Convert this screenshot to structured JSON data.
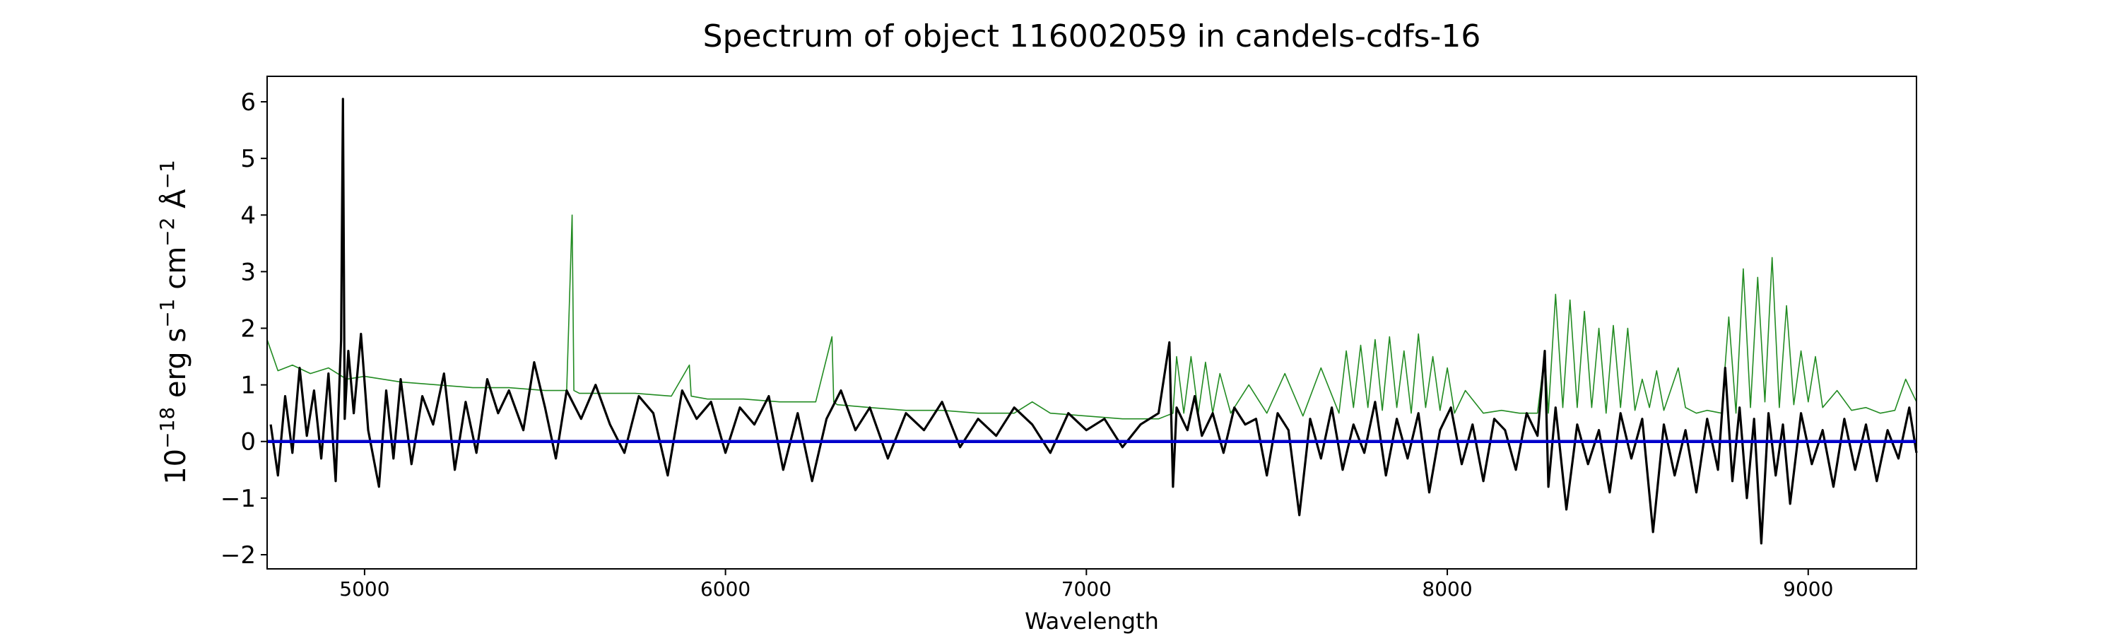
{
  "chart_data": {
    "type": "line",
    "title": "Spectrum of object 116002059 in candels-cdfs-16",
    "xlabel": "Wavelength",
    "ylabel_base": "10",
    "ylabel_exp": "−18",
    "ylabel_u1": " erg s",
    "ylabel_u1_exp": "−1",
    "ylabel_u2": " cm",
    "ylabel_u2_exp": "−2",
    "ylabel_u3": " Å",
    "ylabel_u3_exp": "−1",
    "xlim": [
      4730,
      9300
    ],
    "ylim": [
      -2.25,
      6.45
    ],
    "x_ticks": [
      5000,
      6000,
      7000,
      8000,
      9000
    ],
    "x_tick_labels": [
      "5000",
      "6000",
      "7000",
      "8000",
      "9000"
    ],
    "y_ticks": [
      -2,
      -1,
      0,
      1,
      2,
      3,
      4,
      5,
      6
    ],
    "y_tick_labels": [
      "−2",
      "−1",
      "0",
      "1",
      "2",
      "3",
      "4",
      "5",
      "6"
    ],
    "grid": false,
    "series": [
      {
        "role": "flux",
        "color": "#000000",
        "x": [
          4740,
          4760,
          4780,
          4800,
          4820,
          4840,
          4860,
          4880,
          4900,
          4920,
          4935,
          4940,
          4945,
          4955,
          4970,
          4990,
          5010,
          5040,
          5060,
          5080,
          5100,
          5130,
          5160,
          5190,
          5220,
          5250,
          5280,
          5310,
          5340,
          5370,
          5400,
          5440,
          5470,
          5500,
          5530,
          5560,
          5600,
          5640,
          5680,
          5720,
          5760,
          5800,
          5840,
          5880,
          5920,
          5960,
          6000,
          6040,
          6080,
          6120,
          6160,
          6200,
          6240,
          6280,
          6320,
          6360,
          6400,
          6450,
          6500,
          6550,
          6600,
          6650,
          6700,
          6750,
          6800,
          6850,
          6900,
          6950,
          7000,
          7050,
          7100,
          7150,
          7200,
          7230,
          7240,
          7250,
          7280,
          7300,
          7320,
          7350,
          7380,
          7410,
          7440,
          7470,
          7500,
          7530,
          7560,
          7590,
          7620,
          7650,
          7680,
          7710,
          7740,
          7770,
          7800,
          7830,
          7860,
          7890,
          7920,
          7950,
          7980,
          8010,
          8040,
          8070,
          8100,
          8130,
          8160,
          8190,
          8220,
          8250,
          8270,
          8280,
          8300,
          8330,
          8360,
          8390,
          8420,
          8450,
          8480,
          8510,
          8540,
          8570,
          8600,
          8630,
          8660,
          8690,
          8720,
          8750,
          8770,
          8790,
          8810,
          8830,
          8850,
          8870,
          8890,
          8910,
          8930,
          8950,
          8980,
          9010,
          9040,
          9070,
          9100,
          9130,
          9160,
          9190,
          9220,
          9250,
          9280,
          9300
        ],
        "y": [
          0.3,
          -0.6,
          0.8,
          -0.2,
          1.3,
          0.1,
          0.9,
          -0.3,
          1.2,
          -0.7,
          1.8,
          6.05,
          0.4,
          1.6,
          0.5,
          1.9,
          0.2,
          -0.8,
          0.9,
          -0.3,
          1.1,
          -0.4,
          0.8,
          0.3,
          1.2,
          -0.5,
          0.7,
          -0.2,
          1.1,
          0.5,
          0.9,
          0.2,
          1.4,
          0.6,
          -0.3,
          0.9,
          0.4,
          1.0,
          0.3,
          -0.2,
          0.8,
          0.5,
          -0.6,
          0.9,
          0.4,
          0.7,
          -0.2,
          0.6,
          0.3,
          0.8,
          -0.5,
          0.5,
          -0.7,
          0.4,
          0.9,
          0.2,
          0.6,
          -0.3,
          0.5,
          0.2,
          0.7,
          -0.1,
          0.4,
          0.1,
          0.6,
          0.3,
          -0.2,
          0.5,
          0.2,
          0.4,
          -0.1,
          0.3,
          0.5,
          1.75,
          -0.8,
          0.6,
          0.2,
          0.8,
          0.1,
          0.5,
          -0.2,
          0.6,
          0.3,
          0.4,
          -0.6,
          0.5,
          0.2,
          -1.3,
          0.4,
          -0.3,
          0.6,
          -0.5,
          0.3,
          -0.2,
          0.7,
          -0.6,
          0.4,
          -0.3,
          0.5,
          -0.9,
          0.2,
          0.6,
          -0.4,
          0.3,
          -0.7,
          0.4,
          0.2,
          -0.5,
          0.5,
          0.1,
          1.6,
          -0.8,
          0.6,
          -1.2,
          0.3,
          -0.4,
          0.2,
          -0.9,
          0.5,
          -0.3,
          0.4,
          -1.6,
          0.3,
          -0.6,
          0.2,
          -0.9,
          0.4,
          -0.5,
          1.3,
          -0.7,
          0.6,
          -1.0,
          0.4,
          -1.8,
          0.5,
          -0.6,
          0.3,
          -1.1,
          0.5,
          -0.4,
          0.2,
          -0.8,
          0.4,
          -0.5,
          0.3,
          -0.7,
          0.2,
          -0.3,
          0.6,
          -0.2
        ]
      },
      {
        "role": "model",
        "color": "#228b22",
        "x": [
          4730,
          4760,
          4800,
          4850,
          4900,
          4950,
          5000,
          5100,
          5200,
          5300,
          5400,
          5500,
          5560,
          5575,
          5580,
          5595,
          5650,
          5750,
          5850,
          5900,
          5905,
          5950,
          6050,
          6150,
          6250,
          6295,
          6300,
          6310,
          6400,
          6500,
          6600,
          6700,
          6800,
          6850,
          6900,
          7000,
          7100,
          7200,
          7240,
          7250,
          7270,
          7290,
          7310,
          7330,
          7350,
          7370,
          7400,
          7450,
          7500,
          7550,
          7600,
          7650,
          7700,
          7720,
          7740,
          7760,
          7780,
          7800,
          7820,
          7840,
          7860,
          7880,
          7900,
          7920,
          7940,
          7960,
          7980,
          8000,
          8020,
          8050,
          8100,
          8150,
          8200,
          8250,
          8270,
          8280,
          8300,
          8320,
          8340,
          8360,
          8380,
          8400,
          8420,
          8440,
          8460,
          8480,
          8500,
          8520,
          8540,
          8560,
          8580,
          8600,
          8640,
          8660,
          8690,
          8720,
          8760,
          8780,
          8800,
          8820,
          8840,
          8860,
          8880,
          8900,
          8920,
          8940,
          8960,
          8980,
          9000,
          9020,
          9040,
          9080,
          9120,
          9160,
          9200,
          9240,
          9270,
          9300
        ],
        "y": [
          1.8,
          1.25,
          1.35,
          1.2,
          1.3,
          1.1,
          1.15,
          1.05,
          1.0,
          0.95,
          0.95,
          0.9,
          0.9,
          4.0,
          0.9,
          0.85,
          0.85,
          0.85,
          0.8,
          1.35,
          0.8,
          0.75,
          0.75,
          0.7,
          0.7,
          1.85,
          0.7,
          0.65,
          0.6,
          0.55,
          0.55,
          0.5,
          0.5,
          0.7,
          0.5,
          0.45,
          0.4,
          0.4,
          0.5,
          1.5,
          0.5,
          1.5,
          0.5,
          1.4,
          0.5,
          1.2,
          0.5,
          1.0,
          0.5,
          1.2,
          0.45,
          1.3,
          0.5,
          1.6,
          0.6,
          1.7,
          0.6,
          1.8,
          0.55,
          1.85,
          0.6,
          1.6,
          0.5,
          1.9,
          0.6,
          1.5,
          0.55,
          1.3,
          0.5,
          0.9,
          0.5,
          0.55,
          0.5,
          0.5,
          1.55,
          0.5,
          2.6,
          0.6,
          2.5,
          0.6,
          2.3,
          0.6,
          2.0,
          0.5,
          2.05,
          0.6,
          2.0,
          0.55,
          1.1,
          0.6,
          1.25,
          0.55,
          1.3,
          0.6,
          0.5,
          0.55,
          0.5,
          2.2,
          0.5,
          3.05,
          0.6,
          2.9,
          0.7,
          3.25,
          0.6,
          2.4,
          0.65,
          1.6,
          0.7,
          1.5,
          0.6,
          0.9,
          0.55,
          0.6,
          0.5,
          0.55,
          1.1,
          0.7
        ]
      },
      {
        "role": "zero",
        "color": "#0000cc",
        "x": [
          4730,
          9300
        ],
        "y": [
          0,
          0
        ]
      }
    ]
  }
}
